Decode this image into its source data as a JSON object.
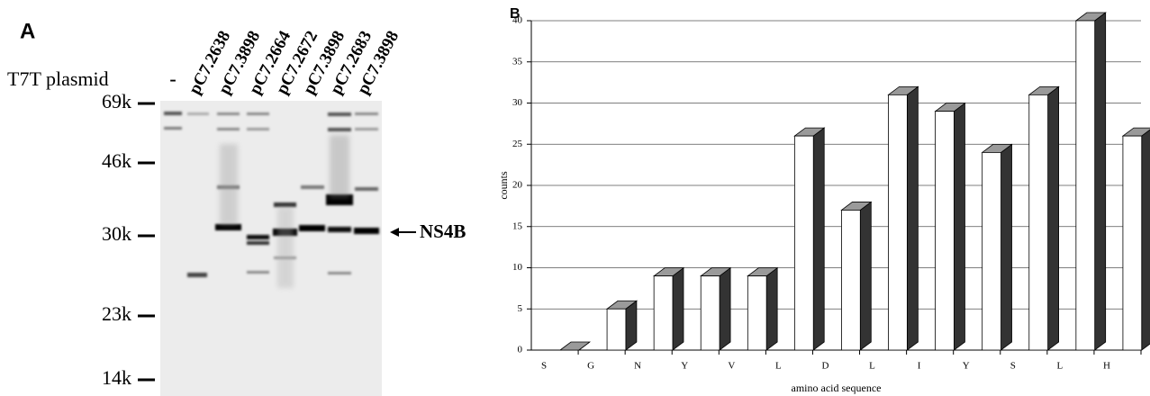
{
  "panel_a": {
    "label": "A",
    "row_label": "T7T plasmid",
    "lanes": [
      "-",
      "pC7.2638",
      "pC7.3898",
      "pC7.2664",
      "pC7.2672",
      "pC7.3898",
      "pC7.2683",
      "pC7.3898"
    ],
    "markers": [
      "69k",
      "46k",
      "30k",
      "23k",
      "14k"
    ],
    "arrow_label": "NS4B"
  },
  "chart_data": {
    "type": "bar3d",
    "panel_label": "B",
    "categories": [
      "S",
      "G",
      "N",
      "Y",
      "V",
      "L",
      "D",
      "L",
      "I",
      "Y",
      "S",
      "L",
      "H"
    ],
    "values": [
      0,
      5,
      9,
      9,
      9,
      26,
      17,
      31,
      29,
      24,
      31,
      40,
      26
    ],
    "ylim": [
      0,
      40
    ],
    "yticks": [
      0,
      5,
      10,
      15,
      20,
      25,
      30,
      35,
      40
    ],
    "ylabel": "counts",
    "xlabel": "amino acid sequence",
    "grid": true,
    "front_color": "#ffffff",
    "top_color": "#9a9a9a",
    "side_color": "#333333"
  }
}
